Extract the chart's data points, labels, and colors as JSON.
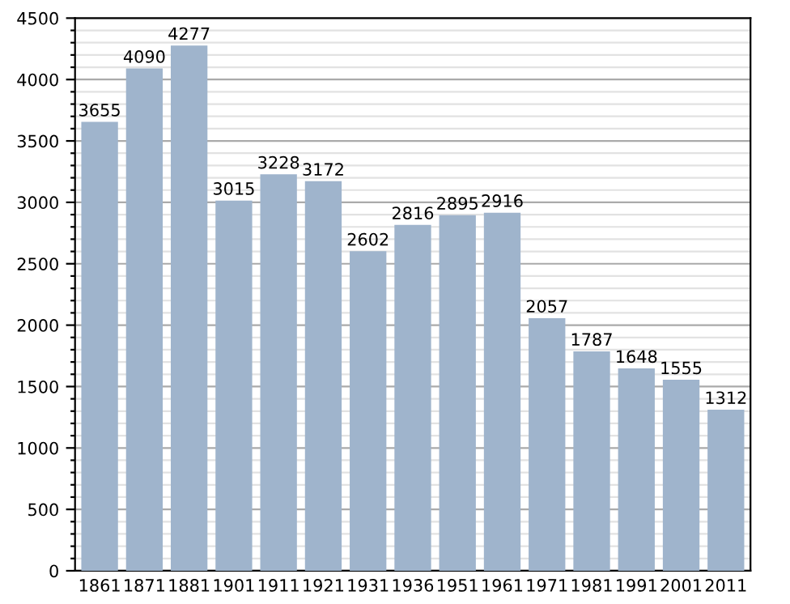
{
  "chart_data": {
    "type": "bar",
    "categories": [
      "1861",
      "1871",
      "1881",
      "1901",
      "1911",
      "1921",
      "1931",
      "1936",
      "1951",
      "1961",
      "1971",
      "1981",
      "1991",
      "2001",
      "2011"
    ],
    "values": [
      3655,
      4090,
      4277,
      3015,
      3228,
      3172,
      2602,
      2816,
      2895,
      2916,
      2057,
      1787,
      1648,
      1555,
      1312
    ],
    "color": "#9fb4cc",
    "ylim": [
      0,
      4500
    ],
    "yticks": [
      0,
      {
        "value": 100,
        "label": null
      },
      {
        "value": 200,
        "label": null
      },
      {
        "value": 300,
        "label": null
      },
      {
        "value": 400,
        "label": null
      },
      500,
      {
        "value": 600,
        "label": null
      },
      {
        "value": 700,
        "label": null
      },
      {
        "value": 800,
        "label": null
      },
      {
        "value": 900,
        "label": null
      },
      1000,
      {
        "value": 1100,
        "label": null
      },
      {
        "value": 1200,
        "label": null
      },
      {
        "value": 1300,
        "label": null
      },
      {
        "value": 1400,
        "label": null
      },
      1500,
      {
        "value": 1600,
        "label": null
      },
      {
        "value": 1700,
        "label": null
      },
      {
        "value": 1800,
        "label": null
      },
      {
        "value": 1900,
        "label": null
      },
      2000,
      {
        "value": 2100,
        "label": null
      },
      {
        "value": 2200,
        "label": null
      },
      {
        "value": 2300,
        "label": null
      },
      {
        "value": 2400,
        "label": null
      },
      2500,
      {
        "value": 2600,
        "label": null
      },
      {
        "value": 2700,
        "label": null
      },
      {
        "value": 2800,
        "label": null
      },
      {
        "value": 2900,
        "label": null
      },
      3000,
      {
        "value": 3100,
        "label": null
      },
      {
        "value": 3200,
        "label": null
      },
      {
        "value": 3300,
        "label": null
      },
      {
        "value": 3400,
        "label": null
      },
      3500,
      {
        "value": 3600,
        "label": null
      },
      {
        "value": 3700,
        "label": null
      },
      {
        "value": 3800,
        "label": null
      },
      {
        "value": 3900,
        "label": null
      },
      4000,
      {
        "value": 4100,
        "label": null
      },
      {
        "value": 4200,
        "label": null
      },
      {
        "value": 4300,
        "label": null
      },
      {
        "value": 4400,
        "label": null
      },
      4500
    ],
    "grid": "y",
    "data_labels": true
  }
}
